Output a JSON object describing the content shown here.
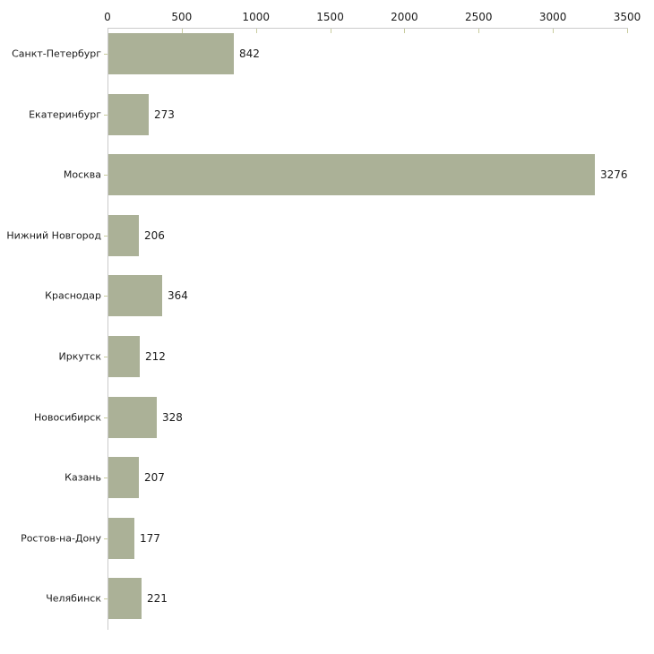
{
  "chart_data": {
    "type": "bar",
    "orientation": "horizontal",
    "categories": [
      "Санкт-Петербург",
      "Екатеринбург",
      "Москва",
      "Нижний Новгород",
      "Краснодар",
      "Иркутск",
      "Новосибирск",
      "Казань",
      "Ростов-на-Дону",
      "Челябинск"
    ],
    "values": [
      842,
      273,
      3276,
      206,
      364,
      212,
      328,
      207,
      177,
      221
    ],
    "data_labels": [
      "842",
      "273",
      "3276",
      "206",
      "364",
      "212",
      "328",
      "207",
      "177",
      "221"
    ],
    "title": "",
    "xlabel": "",
    "ylabel": "",
    "xlim": [
      0,
      3500
    ],
    "x_ticks": [
      0,
      500,
      1000,
      1500,
      2000,
      2500,
      3000,
      3500
    ],
    "x_tick_labels": [
      "0",
      "500",
      "1000",
      "1500",
      "2000",
      "2500",
      "3000",
      "3500"
    ],
    "axis_position": "top",
    "grid": false,
    "legend": false,
    "colors": {
      "bar_fill": "#abb197",
      "axis_line": "#cbcbcb",
      "tick_mark": "#c9cc9e",
      "text": "#1a1a1a",
      "background": "#ffffff"
    }
  }
}
